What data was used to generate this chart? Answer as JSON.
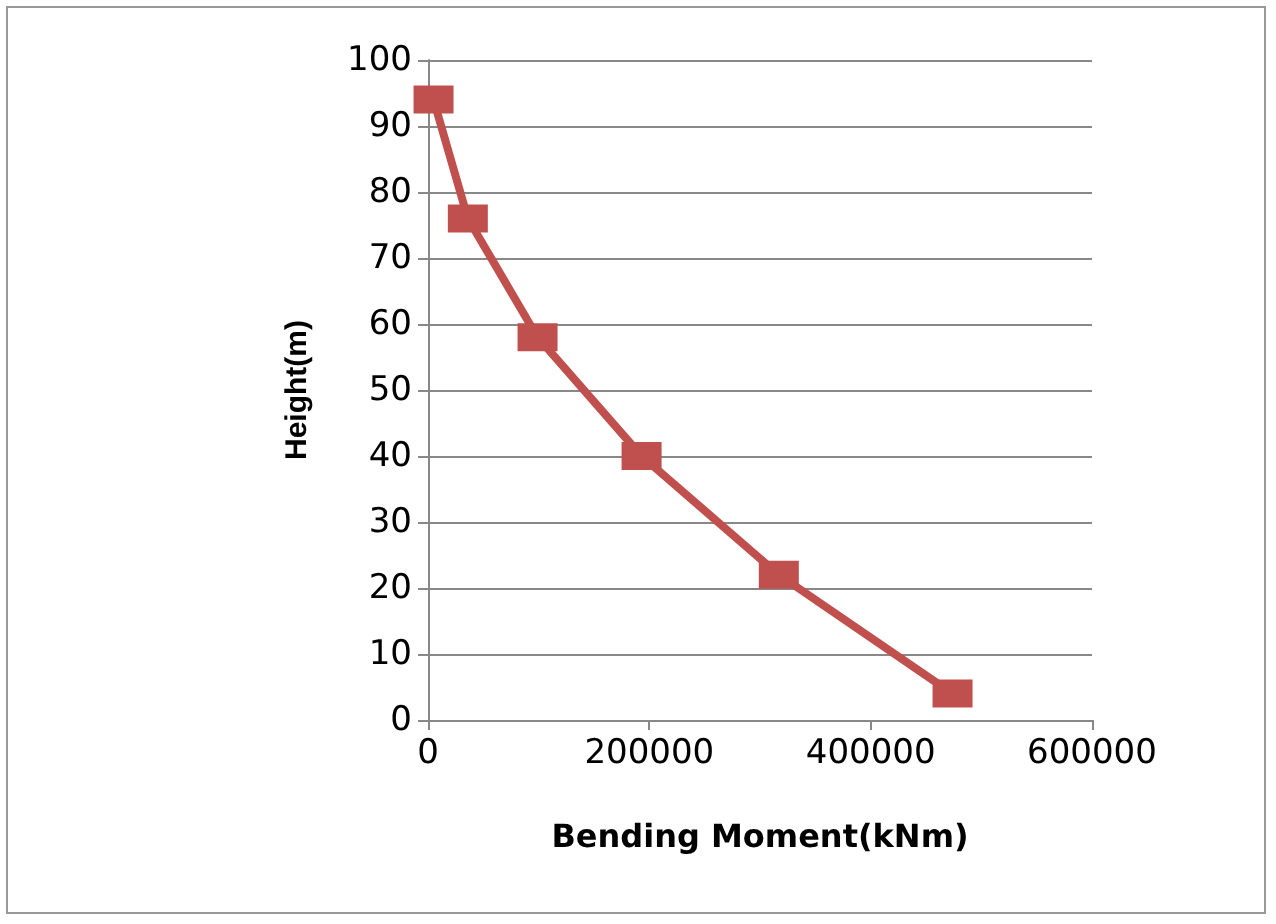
{
  "chart_data": {
    "type": "line",
    "xlabel": "Bending Moment(kNm)",
    "ylabel": "Height(m)",
    "x": [
      5000,
      36000,
      99000,
      193000,
      317000,
      474000
    ],
    "series": [
      {
        "color": "#c0504d",
        "values": [
          94,
          76,
          58,
          40,
          22,
          4
        ]
      }
    ],
    "xlim": [
      0,
      600000
    ],
    "xticks": [
      0,
      200000,
      400000,
      600000
    ],
    "ylim": [
      0,
      100
    ],
    "yticks": [
      0,
      10,
      20,
      30,
      40,
      50,
      60,
      70,
      80,
      90,
      100
    ],
    "grid": "y",
    "marker": "square",
    "line_style": "solid",
    "legend": false
  }
}
